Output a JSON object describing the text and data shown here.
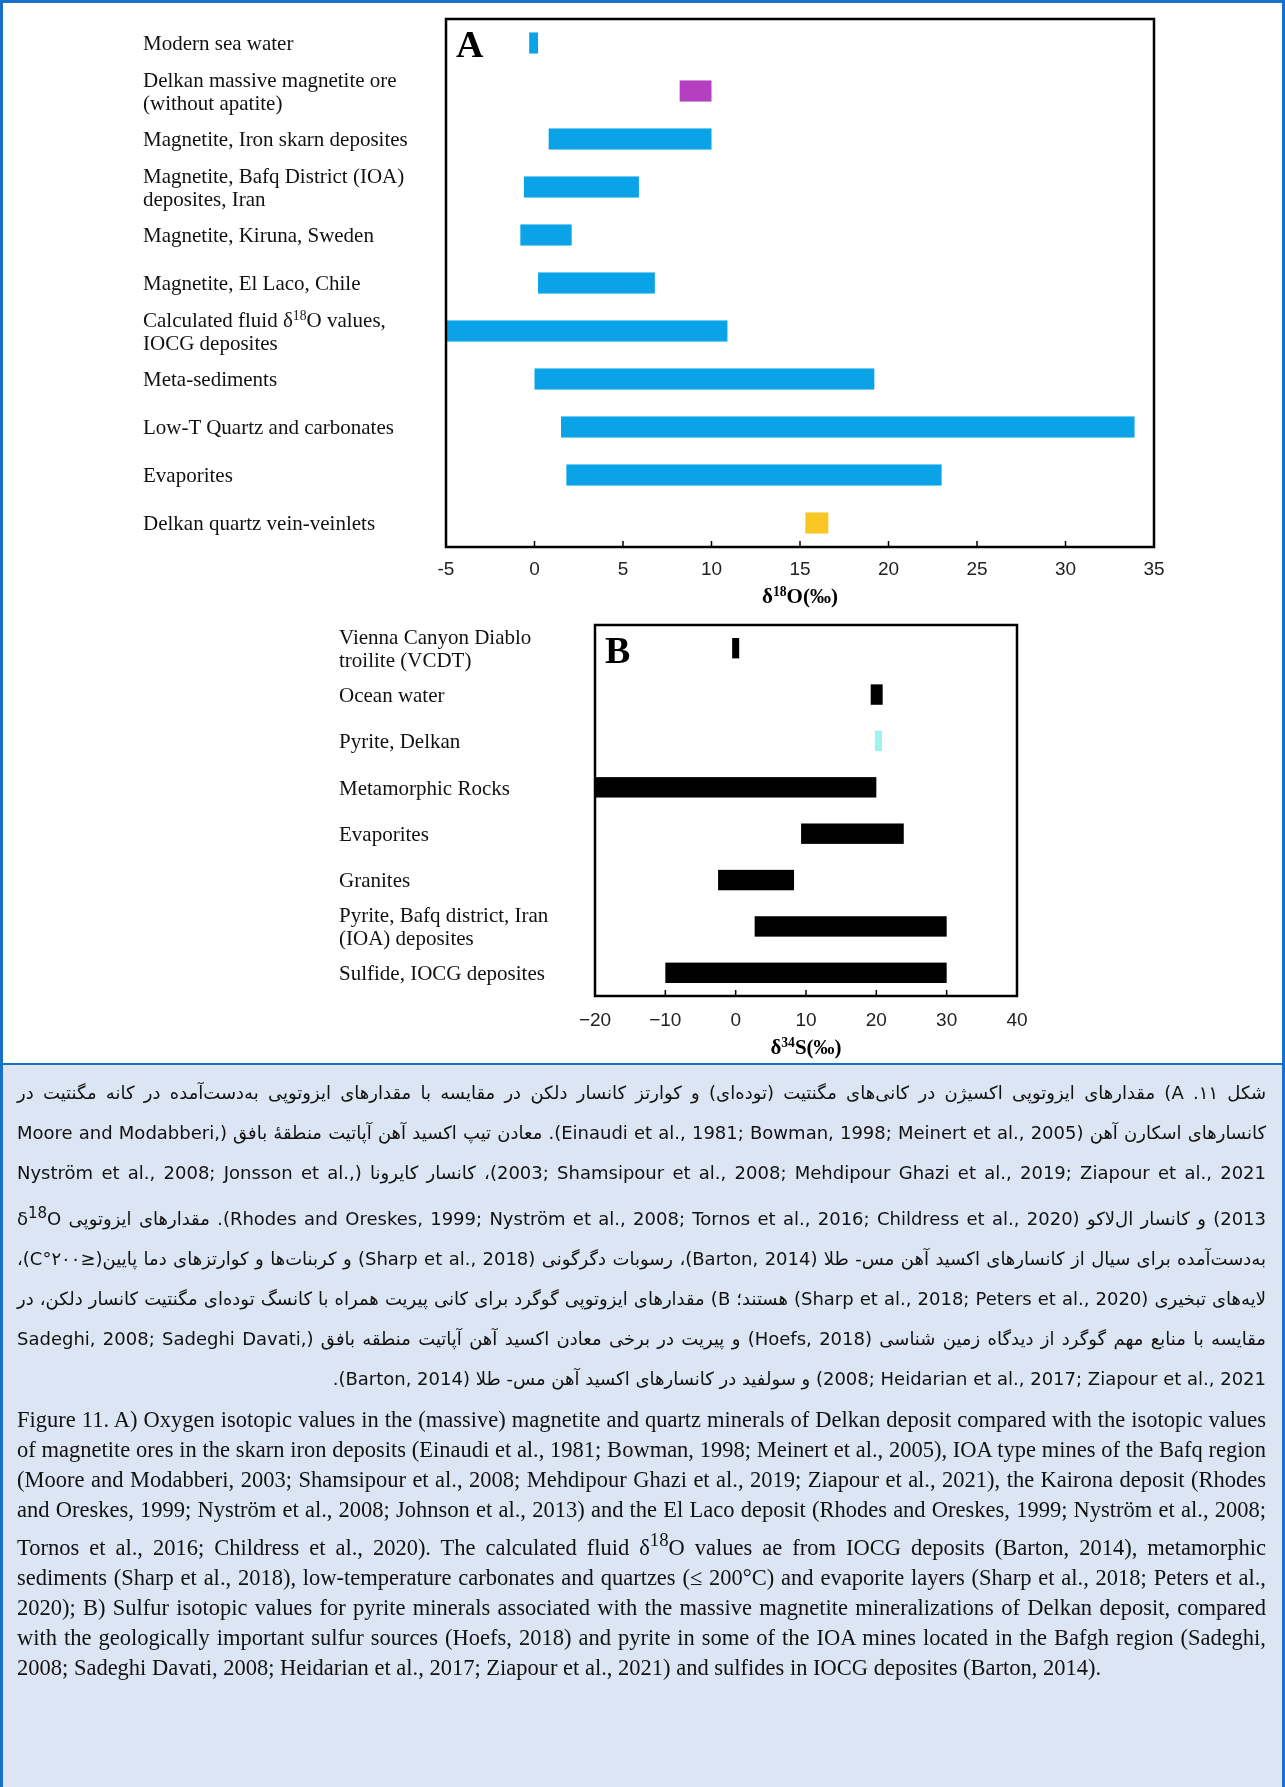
{
  "chart_data": [
    {
      "type": "bar",
      "orientation": "horizontal",
      "xlabel": "δ$^{18}$O(‰)",
      "annotations": [
        "A"
      ],
      "categories": [
        "Modern sea water",
        "Delkan massive magnetite ore (without apatite)",
        "Magnetite, Iron skarn deposites",
        "Magnetite, Bafq District (IOA) deposites, Iran",
        "Magnetite, Kiruna, Sweden",
        "Magnetite, El Laco, Chile",
        "Calculated fluid δ$^{18}$O values, IOCG deposites",
        "Meta-sediments",
        "Low-T Quartz and carbonates",
        "Evaporites",
        "Delkan quartz vein-veinlets"
      ],
      "base": [
        -0.3,
        8.2,
        0.8,
        -0.6,
        -0.8,
        0.2,
        -5,
        0,
        1.5,
        1.8,
        15.3
      ],
      "values": [
        0.5,
        1.8,
        9.2,
        6.5,
        2.9,
        6.6,
        15.9,
        19.2,
        32.4,
        21.2,
        1.3
      ],
      "colors": [
        "#0aa3e8",
        "#b540bf",
        "#0aa3e8",
        "#0aa3e8",
        "#0aa3e8",
        "#0aa3e8",
        "#0aa3e8",
        "#0aa3e8",
        "#0aa3e8",
        "#0aa3e8",
        "#f9c623"
      ],
      "xlim": [
        -5,
        35
      ],
      "xticks": [
        -5,
        0,
        5,
        10,
        15,
        20,
        25,
        30,
        35
      ],
      "grid": false
    },
    {
      "type": "bar",
      "orientation": "horizontal",
      "xlabel": "δ$^{34}$S(‰)",
      "annotations": [
        "B"
      ],
      "categories": [
        "Vienna Canyon Diablo troilite (VCDT)",
        "Ocean water",
        "Pyrite, Delkan",
        "Metamorphic Rocks",
        "Evaporites",
        "Granites",
        "Pyrite, Bafq district, Iran (IOA) deposites",
        "Sulfide, IOCG deposites"
      ],
      "base": [
        -0.5,
        19.2,
        19.8,
        -20,
        9.3,
        -2.5,
        2.7,
        -10
      ],
      "values": [
        1,
        1.7,
        1,
        40,
        14.6,
        10.8,
        27.3,
        40
      ],
      "colors": [
        "#000000",
        "#000000",
        "#9ef3f0",
        "#000000",
        "#000000",
        "#000000",
        "#000000",
        "#000000"
      ],
      "xlim": [
        -20,
        40
      ],
      "xticks": [
        {
          "value": -20,
          "label": "−20"
        },
        {
          "value": -10,
          "label": "−10"
        },
        0,
        10,
        20,
        30,
        40
      ],
      "grid": false
    },
    {
      "type": "other",
      "annotations": [
        "شکل ۱۱. A) مقدارهای ایزوتوپی اکسیژن در کانی‌های مگنتیت (توده‌ای) و کوارتز کانسار دلکن در مقایسه با مقدارهای ایزوتوپی به‌دست‌آمده در کانه مگنتیت در کانسارهای اسکارن آهن (Einaudi et al., 1981; Bowman, 1998; Meinert et al., 2005). معادن تیپ اکسید آهن آپاتیت منطقهٔ بافق (Moore and Modabberi, 2003; Shamsipour et al., 2008; Mehdipour Ghazi et al., 2019; Ziapour et al., 2021)، کانسار کایرونا (Nyström et al., 2008; Jonsson et al., 2013) و کانسار ال‌لاکو (Rhodes and Oreskes, 1999; Nyström et al., 2008; Tornos et al., 2016; Childress et al., 2020). مقدارهای ایزوتوپی δ$^{18}$O به‌دست‌آمده برای سیال از کانسارهای اکسید آهن مس- طلا (Barton, 2014)، رسوبات دگرگونی (Sharp et al., 2018) و کربنات‌ها و کوارتزهای دما پایین(≤۲۰۰°C)، لایه‌های تبخیری (Sharp et al., 2018; Peters et al., 2020) هستند؛ B) مقدارهای ایزوتوپی گوگرد برای کانی پیریت همراه با کانسگ توده‌ای مگنتیت کانسار دلکن، در مقایسه با منابع مهم گوگرد از دیدگاه زمین شناسی (Hoefs, 2018) و پیریت در برخی معادن اکسید آهن آپاتیت منطقه بافق (Sadeghi, 2008; Sadeghi Davati, 2008; Heidarian et al., 2017; Ziapour et al., 2021) و سولفید در کانسارهای اکسید آهن مس- طلا (Barton, 2014).",
        "Figure 11. A) Oxygen isotopic values in the (massive) magnetite and quartz minerals of Delkan deposit compared with the isotopic values of magnetite ores in the skarn iron deposits (Einaudi et al., 1981; Bowman, 1998; Meinert et al., 2005), IOA type mines of the Bafq region (Moore and Modabberi, 2003; Shamsipour et al., 2008; Mehdipour Ghazi et al., 2019; Ziapour et al., 2021), the Kairona deposit (Rhodes and Oreskes, 1999; Nyström et al., 2008; Johnson et al., 2013) and the El Laco deposit (Rhodes and Oreskes, 1999; Nyström et al., 2008; Tornos et al., 2016; Childress et al., 2020). The calculated fluid δ$^{18}$O values ae from IOCG deposits (Barton, 2014), metamorphic sediments (Sharp et al., 2018), low-temperature carbonates and quartzes (≤ 200°C) and evaporite layers (Sharp et al., 2018; Peters et al., 2020); B) Sulfur isotopic values for pyrite minerals associated with the massive magnetite mineralizations of Delkan deposit, compared with the geologically important sulfur sources (Hoefs, 2018) and pyrite in some of the IOA mines located in the Bafgh region (Sadeghi, 2008; Sadeghi Davati, 2008; Heidarian et al., 2017; Ziapour et al., 2021) and sulfides in IOCG deposites (Barton, 2014)."
      ]
    }
  ]
}
